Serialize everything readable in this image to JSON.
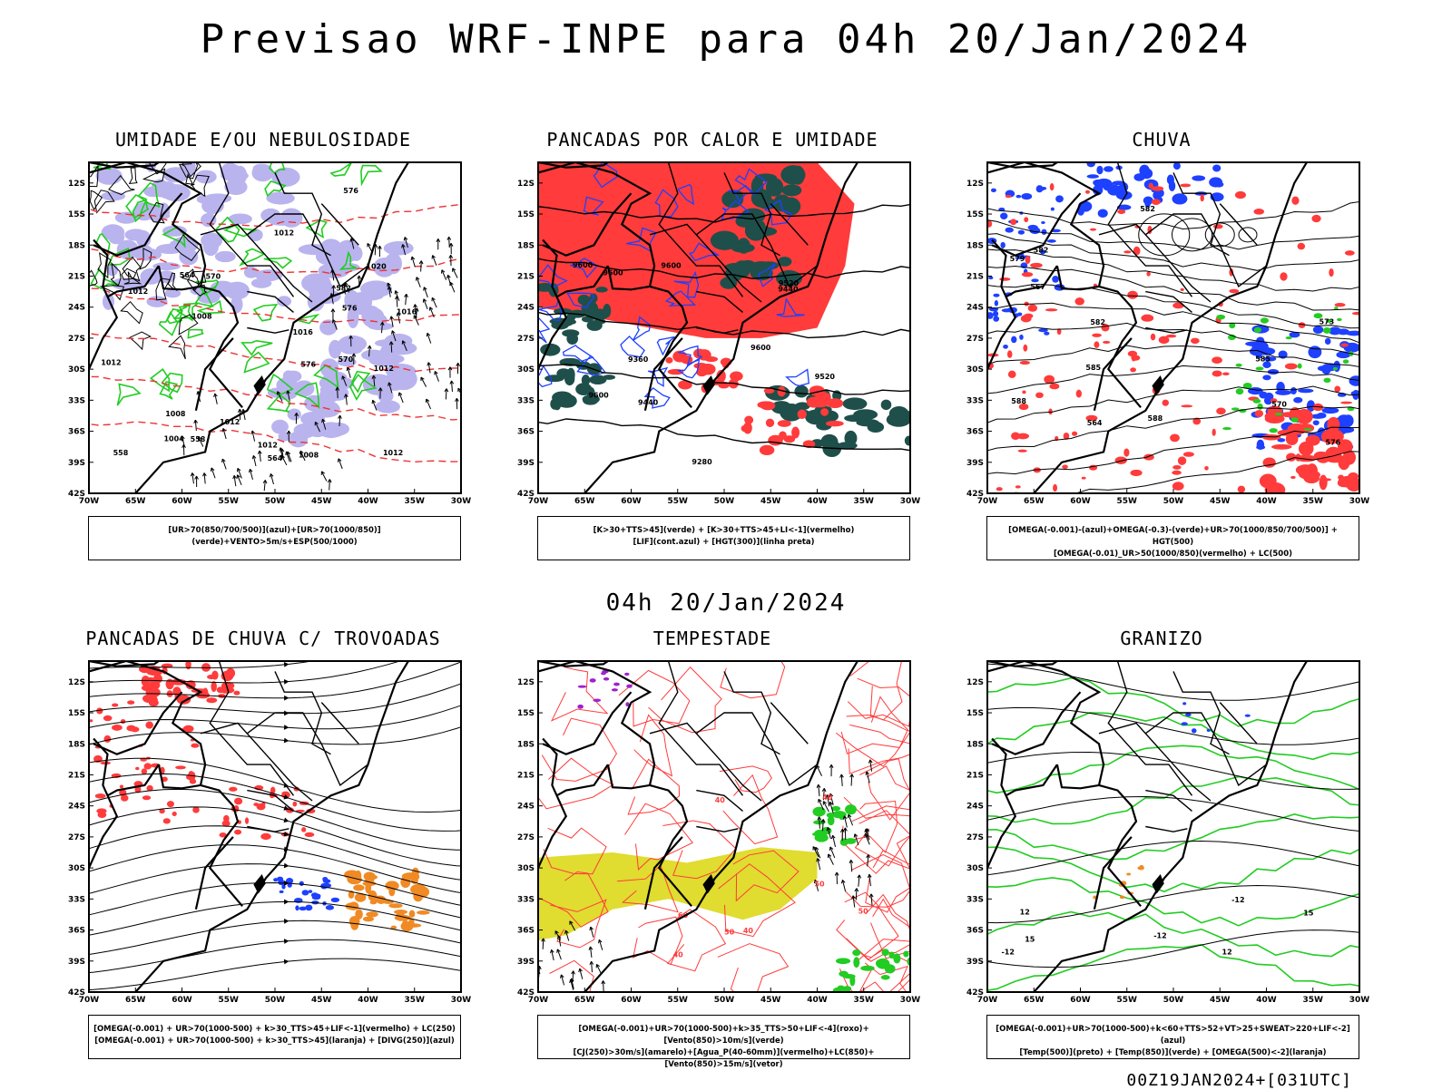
{
  "header": {
    "title": "Previsao WRF-INPE  para 04h 20/Jan/2024",
    "mid_time": "04h 20/Jan/2024",
    "run_stamp": "00Z19JAN2024+[031UTC]"
  },
  "axes": {
    "lat_labels": [
      "12S",
      "15S",
      "18S",
      "21S",
      "24S",
      "27S",
      "30S",
      "33S",
      "36S",
      "39S",
      "42S"
    ],
    "lon_labels": [
      "70W",
      "65W",
      "60W",
      "55W",
      "50W",
      "45W",
      "40W",
      "35W",
      "30W"
    ]
  },
  "panels": [
    {
      "id": "umidade",
      "title": "UMIDADE E/OU NEBULOSIDADE",
      "legend": [
        "[UR>70(850/700/500)](azul)+[UR>70(1000/850)](verde)+VENTO>5m/s+ESP(500/1000)"
      ],
      "contour_labels": [
        "1012",
        "1012",
        "1012",
        "1008",
        "1008",
        "1012",
        "1016",
        "1012",
        "1012",
        "1016",
        "1020",
        "1012",
        "1008",
        "1004",
        "576",
        "576",
        "576",
        "570",
        "570",
        "564",
        "564",
        "558",
        "558",
        "582"
      ]
    },
    {
      "id": "pancadas-calor",
      "title": "PANCADAS POR CALOR E UMIDADE",
      "legend": [
        "[K>30+TTS>45](verde) + [K>30+TTS>45+LI<-1](vermelho)",
        "[LIF](cont.azul) + [HGT(300)](linha preta)"
      ],
      "contour_labels": [
        "9600",
        "9600",
        "9600",
        "9600",
        "9600",
        "9520",
        "9440",
        "9520",
        "9440",
        "9360",
        "9280"
      ]
    },
    {
      "id": "chuva",
      "title": "CHUVA",
      "legend": [
        "[OMEGA(-0.001)-(azul)+OMEGA(-0.3)-(verde)+UR>70(1000/850/700/500)] + HGT(500)",
        "[OMEGA(-0.01)_UR>50(1000/850)(vermelho) + LC(500)"
      ],
      "contour_labels": [
        "585",
        "588",
        "585",
        "582",
        "582",
        "579",
        "576",
        "573",
        "570",
        "567",
        "564",
        "582",
        "588"
      ]
    },
    {
      "id": "trovoadas",
      "title": "PANCADAS DE CHUVA C/ TROVOADAS",
      "legend": [
        "[OMEGA(-0.001) + UR>70(1000-500) + k>30_TTS>45+LIF<-1](vermelho) + LC(250)",
        "[OMEGA(-0.001) + UR>70(1000-500) + k>30_TTS>45](laranja) + [DIVG(250)](azul)"
      ],
      "contour_labels": []
    },
    {
      "id": "tempestade",
      "title": "TEMPESTADE",
      "legend": [
        "[OMEGA(-0.001)+UR>70(1000-500)+k>35_TTS>50+LIF<-4](roxo)+[Vento(850)>10m/s](verde)",
        "[CJ(250)>30m/s](amarelo)+[Agua_P(40-60mm)](vermelho)+LC(850)+[Vento(850)>15m/s](vetor)"
      ],
      "contour_labels": [
        "40",
        "40",
        "50",
        "50",
        "60",
        "40",
        "40",
        "50"
      ]
    },
    {
      "id": "granizo",
      "title": "GRANIZO",
      "legend": [
        "[OMEGA(-0.001)+UR>70(1000-500)+k<60+TTS>52+VT>25+SWEAT>220+LIF<-2](azul)",
        "[Temp(500)](preto) + [Temp(850)](verde) + [OMEGA(500)<-2](laranja)"
      ],
      "contour_labels": [
        "-12",
        "-12",
        "-12",
        "12",
        "12",
        "15",
        "15"
      ]
    }
  ],
  "colors": {
    "red": "#ff3b3b",
    "blue": "#1e40ff",
    "lavender": "#b9b4ee",
    "green": "#22cc22",
    "darkteal": "#1f4f4a",
    "orange": "#f08a24",
    "yellow": "#e0dc30",
    "purple": "#a020d0"
  }
}
